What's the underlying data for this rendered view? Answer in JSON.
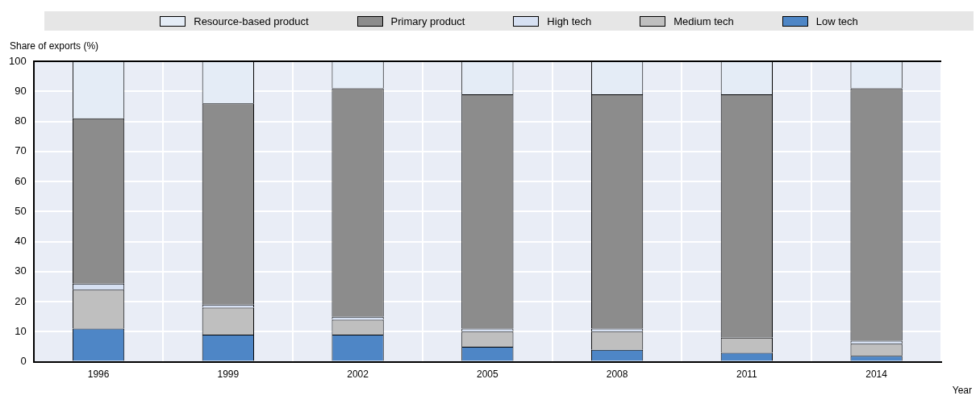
{
  "chart_data": {
    "type": "bar",
    "stacked": true,
    "ylabel": "Share of exports (%)",
    "xlabel": "Year",
    "categories": [
      "1996",
      "1999",
      "2002",
      "2005",
      "2008",
      "2011",
      "2014"
    ],
    "series": [
      {
        "name": "Low tech",
        "color": "#4e86c6",
        "values": [
          11,
          9,
          9,
          5,
          4,
          3,
          2
        ]
      },
      {
        "name": "Medium tech",
        "color": "#bfbfbf",
        "values": [
          13,
          9,
          5,
          5,
          6,
          5,
          4
        ]
      },
      {
        "name": "High tech",
        "color": "#d6e0f2",
        "values": [
          2,
          1,
          1,
          1,
          1,
          0,
          1
        ]
      },
      {
        "name": "Primary product",
        "color": "#8c8c8c",
        "values": [
          55,
          67,
          76,
          78,
          78,
          81,
          84
        ]
      },
      {
        "name": "Resource-based product",
        "color": "#e4ecf6",
        "values": [
          19,
          14,
          9,
          11,
          11,
          11,
          9
        ]
      }
    ],
    "ylim": [
      0,
      100
    ],
    "yticks": [
      0,
      10,
      20,
      30,
      40,
      50,
      60,
      70,
      80,
      90,
      100
    ],
    "grid": true,
    "legend": "top"
  }
}
